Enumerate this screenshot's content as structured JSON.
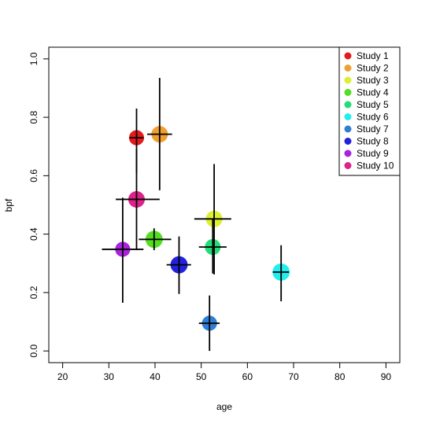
{
  "chart_data": {
    "type": "scatter",
    "xlabel": "age",
    "ylabel": "bpf",
    "xlim": [
      17,
      93
    ],
    "ylim": [
      -0.04,
      1.04
    ],
    "x_ticks": [
      "20",
      "30",
      "40",
      "50",
      "60",
      "70",
      "80",
      "90"
    ],
    "y_ticks": [
      "0.0",
      "0.2",
      "0.4",
      "0.6",
      "0.8",
      "1.0"
    ],
    "grid": false,
    "legend_position": "top-right",
    "series": [
      {
        "name": "Study 1",
        "color": "#e41a1c",
        "x": 36.0,
        "y": 0.73,
        "x_low": 34.5,
        "x_high": 37.5,
        "y_low": 0.61,
        "y_high": 0.83,
        "size": 0.8
      },
      {
        "name": "Study 2",
        "color": "#f0a030",
        "x": 41.0,
        "y": 0.742,
        "x_low": 38.3,
        "x_high": 43.7,
        "y_low": 0.55,
        "y_high": 0.935,
        "size": 1.0
      },
      {
        "name": "Study 3",
        "color": "#ddee33",
        "x": 52.8,
        "y": 0.452,
        "x_low": 48.5,
        "x_high": 56.5,
        "y_low": 0.262,
        "y_high": 0.64,
        "size": 1.0
      },
      {
        "name": "Study 4",
        "color": "#55dd22",
        "x": 39.8,
        "y": 0.382,
        "x_low": 36.5,
        "x_high": 43.5,
        "y_low": 0.345,
        "y_high": 0.42,
        "size": 1.1
      },
      {
        "name": "Study 5",
        "color": "#22dd77",
        "x": 52.5,
        "y": 0.356,
        "x_low": 49.5,
        "x_high": 55.5,
        "y_low": 0.265,
        "y_high": 0.452,
        "size": 0.9
      },
      {
        "name": "Study 6",
        "color": "#22eeee",
        "x": 67.3,
        "y": 0.27,
        "x_low": 65.5,
        "x_high": 69.0,
        "y_low": 0.17,
        "y_high": 0.362,
        "size": 1.1
      },
      {
        "name": "Study 7",
        "color": "#2f7fd6",
        "x": 51.8,
        "y": 0.095,
        "x_low": 49.5,
        "x_high": 54.0,
        "y_low": 0.0,
        "y_high": 0.19,
        "size": 0.8
      },
      {
        "name": "Study 8",
        "color": "#2222dd",
        "x": 45.2,
        "y": 0.295,
        "x_low": 42.5,
        "x_high": 47.8,
        "y_low": 0.195,
        "y_high": 0.392,
        "size": 1.1
      },
      {
        "name": "Study 9",
        "color": "#aa22dd",
        "x": 33.0,
        "y": 0.348,
        "x_low": 28.5,
        "x_high": 37.5,
        "y_low": 0.165,
        "y_high": 0.525,
        "size": 0.8
      },
      {
        "name": "Study 10",
        "color": "#dd2288",
        "x": 36.0,
        "y": 0.519,
        "x_low": 31.5,
        "x_high": 41.0,
        "y_low": 0.345,
        "y_high": 0.69,
        "size": 1.0
      }
    ]
  }
}
